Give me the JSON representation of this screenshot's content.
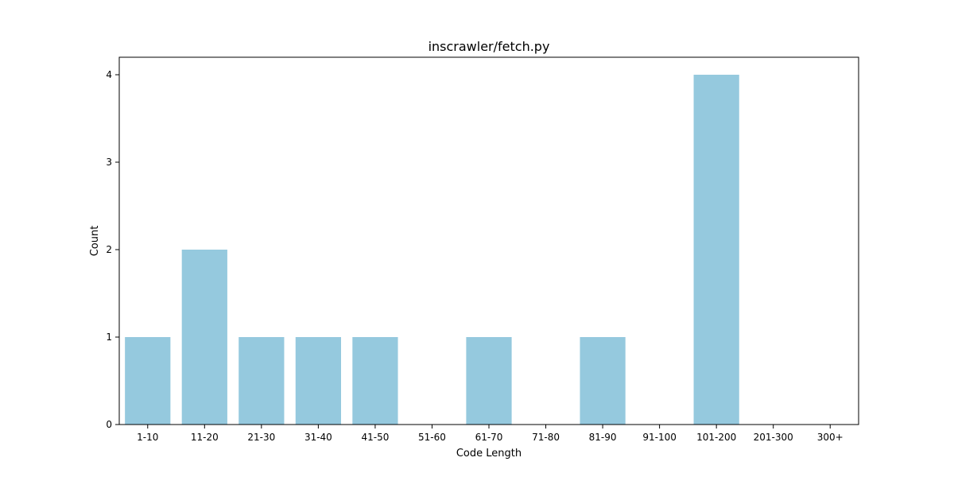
{
  "chart_data": {
    "type": "bar",
    "title": "inscrawler/fetch.py",
    "xlabel": "Code Length",
    "ylabel": "Count",
    "categories": [
      "1-10",
      "11-20",
      "21-30",
      "31-40",
      "41-50",
      "51-60",
      "61-70",
      "71-80",
      "81-90",
      "91-100",
      "101-200",
      "201-300",
      "300+"
    ],
    "values": [
      1,
      2,
      1,
      1,
      1,
      0,
      1,
      0,
      1,
      0,
      4,
      0,
      0
    ],
    "yticks": [
      0,
      1,
      2,
      3,
      4
    ],
    "ylim": [
      0,
      4.2
    ],
    "grid": false,
    "bar_color": "#95c9de"
  }
}
